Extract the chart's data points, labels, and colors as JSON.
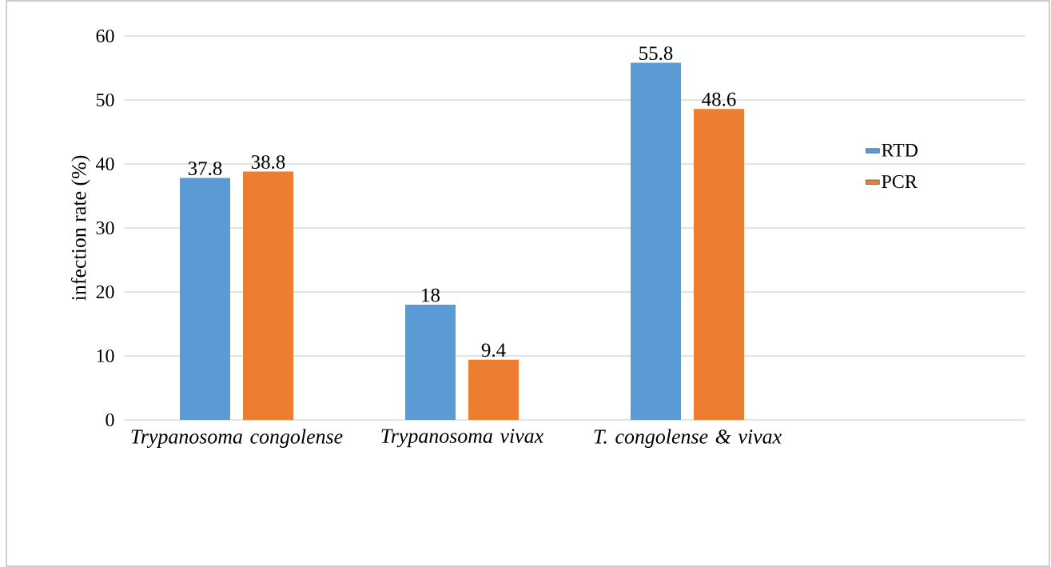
{
  "chart_data": {
    "type": "bar",
    "ylabel": "infection rate (%)",
    "categories": [
      "Trypanosoma congolense",
      "Trypanosoma vivax",
      "T. congolense & vivax",
      null
    ],
    "series": [
      {
        "name": "RTD",
        "color": "#5b9bd5",
        "values": [
          37.8,
          18,
          55.8,
          null
        ]
      },
      {
        "name": "PCR",
        "color": "#ed7d31",
        "values": [
          38.8,
          9.4,
          48.6,
          null
        ]
      }
    ],
    "ylim": [
      0,
      60
    ],
    "yticks": [
      0,
      10,
      20,
      30,
      40,
      50,
      60
    ],
    "grid": "y",
    "legend": "right",
    "data_labels": true
  }
}
